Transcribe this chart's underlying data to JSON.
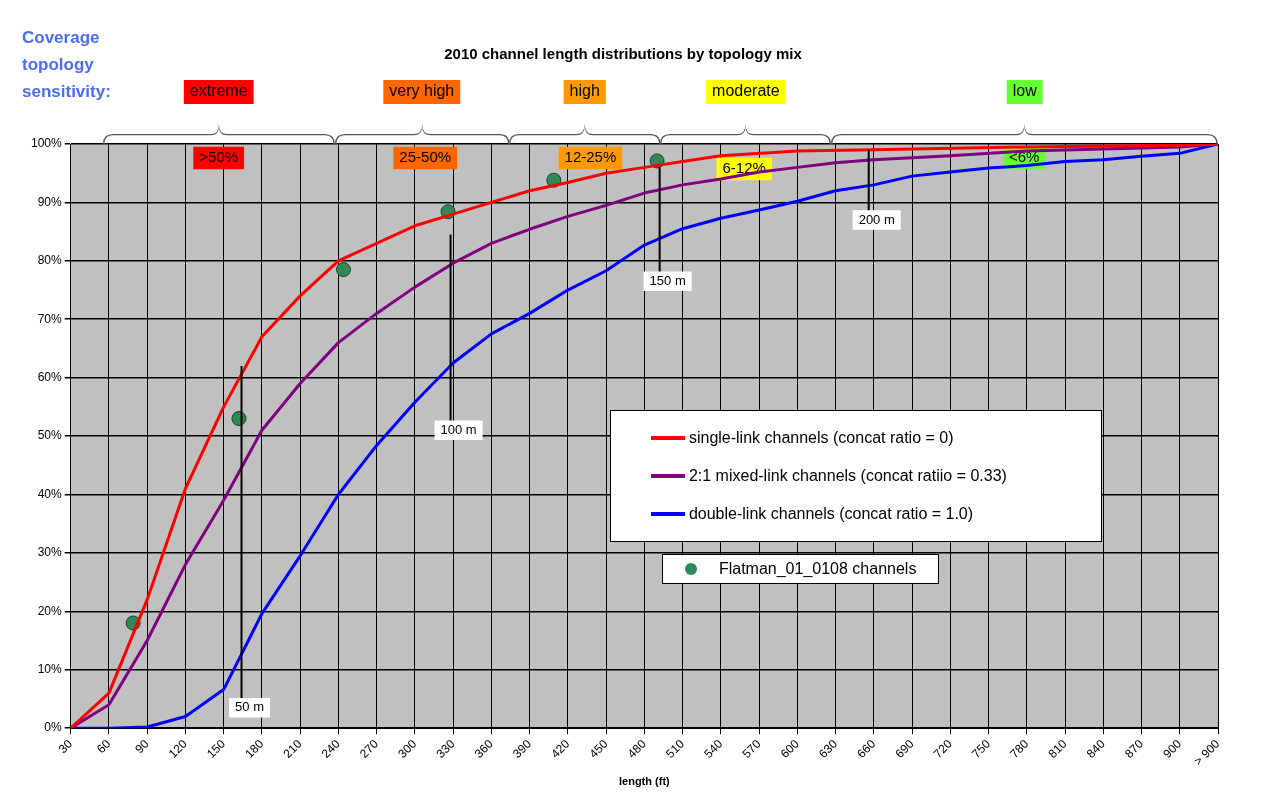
{
  "chart_data": {
    "type": "line",
    "title": "2010 channel length distributions by topology mix",
    "xlabel": "length (ft)",
    "xlim": [
      30,
      930
    ],
    "xticks": [
      30,
      60,
      90,
      120,
      150,
      180,
      210,
      240,
      270,
      300,
      330,
      360,
      390,
      420,
      450,
      480,
      510,
      540,
      570,
      600,
      630,
      660,
      690,
      720,
      750,
      780,
      810,
      840,
      870,
      900,
      {
        "value": 930,
        "label": "> 900"
      }
    ],
    "ylim": [
      0,
      100
    ],
    "yticks": [
      {
        "value": 0,
        "label": "0%"
      },
      {
        "value": 10,
        "label": "10%"
      },
      {
        "value": 20,
        "label": "20%"
      },
      {
        "value": 30,
        "label": "30%"
      },
      {
        "value": 40,
        "label": "40%"
      },
      {
        "value": 50,
        "label": "50%"
      },
      {
        "value": 60,
        "label": "60%"
      },
      {
        "value": 70,
        "label": "70%"
      },
      {
        "value": 80,
        "label": "80%"
      },
      {
        "value": 90,
        "label": "90%"
      },
      {
        "value": 100,
        "label": "100%"
      }
    ],
    "grid": true,
    "legend": "right",
    "marker": "none",
    "line_style": "solid",
    "series": [
      {
        "name": "single-link channels (concat ratio = 0)",
        "type": "line",
        "color": "#ff0000",
        "x": [
          30,
          60,
          90,
          120,
          150,
          180,
          210,
          240,
          270,
          300,
          330,
          360,
          390,
          420,
          450,
          480,
          510,
          540,
          600,
          660,
          780,
          900,
          930
        ],
        "values": [
          0,
          6,
          22,
          41,
          55,
          67,
          74,
          80,
          83,
          86,
          88,
          90,
          92,
          93.4,
          95,
          96,
          97,
          98,
          98.8,
          99,
          99.5,
          99.8,
          100
        ]
      },
      {
        "name": "2:1 mixed-link channels (concat ratiio = 0.33)",
        "type": "line",
        "color": "#800080",
        "x": [
          30,
          60,
          90,
          120,
          150,
          180,
          210,
          240,
          270,
          300,
          330,
          360,
          390,
          420,
          450,
          480,
          510,
          540,
          570,
          600,
          630,
          660,
          720,
          780,
          900,
          930
        ],
        "values": [
          0,
          4,
          15,
          28,
          39,
          51,
          59,
          66,
          71,
          75.5,
          79.6,
          83,
          85.4,
          87.6,
          89.5,
          91.6,
          93,
          94,
          95.2,
          96,
          96.8,
          97.3,
          98,
          98.8,
          99.5,
          100
        ]
      },
      {
        "name": "double-link channels (concat ratio = 1.0)",
        "type": "line",
        "color": "#0000ff",
        "x": [
          30,
          60,
          90,
          120,
          150,
          180,
          210,
          240,
          270,
          300,
          330,
          360,
          390,
          420,
          450,
          480,
          510,
          540,
          570,
          600,
          630,
          660,
          690,
          720,
          750,
          780,
          810,
          840,
          870,
          900,
          930
        ],
        "values": [
          0,
          0,
          0.2,
          2,
          6.6,
          19.6,
          29.5,
          40,
          48.4,
          55.8,
          62.5,
          67.5,
          71,
          75,
          78.3,
          82.7,
          85.5,
          87.3,
          88.7,
          90.2,
          92,
          93,
          94.5,
          95.2,
          95.9,
          96.3,
          97,
          97.3,
          97.9,
          98.4,
          100
        ]
      },
      {
        "name": "Flatman_01_0108 channels",
        "type": "scatter",
        "marker": "circle",
        "color": "#2e8b57",
        "x": [
          79,
          162,
          244,
          326,
          409,
          490
        ],
        "values": [
          18,
          53,
          78.5,
          88.4,
          93.8,
          97.1
        ]
      }
    ],
    "ref_lines": [
      {
        "axis": "x",
        "value": 164,
        "label": "50 m"
      },
      {
        "axis": "x",
        "value": 328,
        "label": "100 m"
      },
      {
        "axis": "x",
        "value": 492,
        "label": "150 m"
      },
      {
        "axis": "x",
        "value": 656,
        "label": "200 m"
      }
    ],
    "annotations": [
      "Coverage topology sensitivity:",
      "extreme",
      ">50%",
      "very high",
      "25-50%",
      "high",
      "12-25%",
      "moderate",
      "6-12%",
      "low",
      "<6%"
    ]
  }
}
